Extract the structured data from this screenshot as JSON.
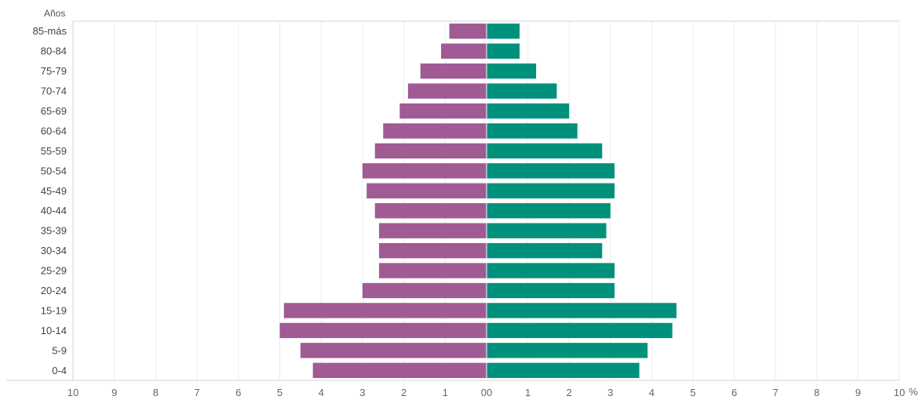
{
  "chart_data": {
    "type": "bar",
    "orientation": "horizontal",
    "layout": "population-pyramid",
    "ylabel": "Años",
    "xunit": "%",
    "categories": [
      "85-más",
      "80-84",
      "75-79",
      "70-74",
      "65-69",
      "60-64",
      "55-59",
      "50-54",
      "45-49",
      "40-44",
      "35-39",
      "30-34",
      "25-29",
      "20-24",
      "15-19",
      "10-14",
      "5-9",
      "0-4"
    ],
    "series": [
      {
        "color": "#a05a94",
        "side": "left",
        "values": [
          0.9,
          1.1,
          1.6,
          1.9,
          2.1,
          2.5,
          2.7,
          3.0,
          2.9,
          2.7,
          2.6,
          2.6,
          2.6,
          3.0,
          4.9,
          5.0,
          4.5,
          4.2
        ]
      },
      {
        "color": "#00917c",
        "side": "right",
        "values": [
          0.8,
          0.8,
          1.2,
          1.7,
          2.0,
          2.2,
          2.8,
          3.1,
          3.1,
          3.0,
          2.9,
          2.8,
          3.1,
          3.1,
          4.6,
          4.5,
          3.9,
          3.7
        ]
      }
    ],
    "xlim_left": [
      10,
      0
    ],
    "xlim_right": [
      0,
      10
    ],
    "ticks_left": [
      "10",
      "9",
      "8",
      "7",
      "6",
      "5",
      "4",
      "3",
      "2",
      "1",
      "0"
    ],
    "ticks_right": [
      "0",
      "1",
      "2",
      "3",
      "4",
      "5",
      "6",
      "7",
      "8",
      "9",
      "10"
    ],
    "grid": true
  }
}
